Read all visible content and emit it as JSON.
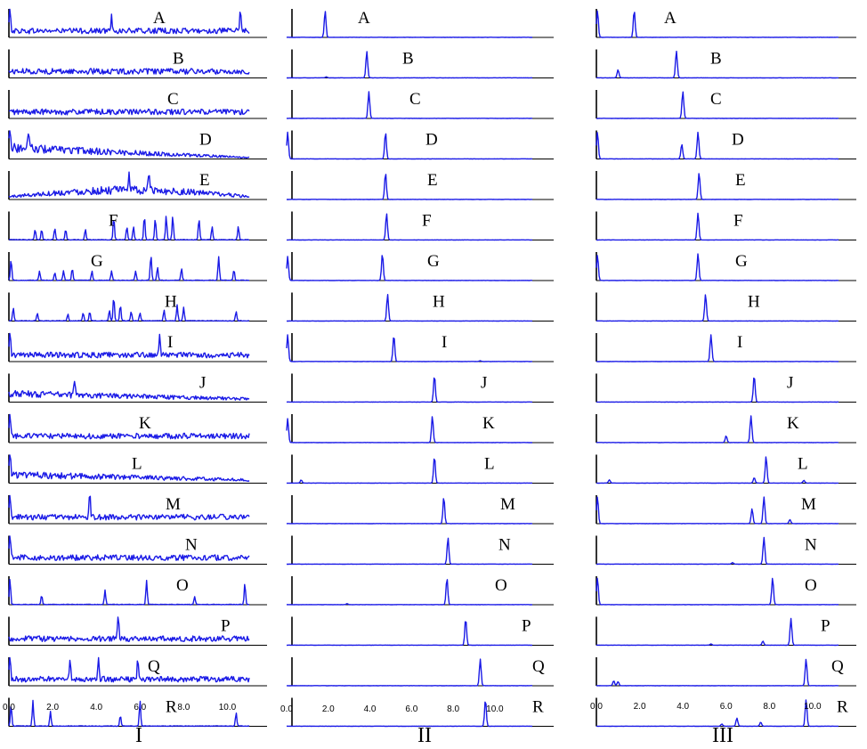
{
  "figure": {
    "panel_titles": [
      "I",
      "II",
      "III"
    ],
    "trace_letters": [
      "A",
      "B",
      "C",
      "D",
      "E",
      "F",
      "G",
      "H",
      "I",
      "J",
      "K",
      "L",
      "M",
      "N",
      "O",
      "P",
      "Q",
      "R"
    ],
    "line_color": "#1a1ae6"
  },
  "chart_data": [
    {
      "type": "line",
      "panel": "I",
      "xlim": [
        0,
        11
      ],
      "x_ticks": [
        "0.0",
        "2.0",
        "4.0",
        "6.0",
        "8.0",
        "10.0"
      ],
      "series": [
        {
          "name": "A",
          "peaks": [
            [
              0.05,
              1.0
            ],
            [
              4.7,
              0.55
            ],
            [
              10.6,
              0.8
            ]
          ]
        },
        {
          "name": "B",
          "peaks": []
        },
        {
          "name": "C",
          "peaks": []
        },
        {
          "name": "D",
          "peaks": [
            [
              0.05,
              1.0
            ],
            [
              0.9,
              0.75
            ]
          ]
        },
        {
          "name": "E",
          "peaks": [
            [
              5.5,
              0.75
            ],
            [
              6.4,
              0.7
            ]
          ]
        },
        {
          "name": "F",
          "peaks": [
            [
              1.2,
              0.4
            ],
            [
              1.5,
              0.4
            ],
            [
              2.1,
              0.45
            ],
            [
              2.6,
              0.4
            ],
            [
              3.5,
              0.4
            ],
            [
              4.8,
              0.85
            ],
            [
              5.4,
              0.5
            ],
            [
              5.7,
              0.5
            ],
            [
              6.2,
              0.9
            ],
            [
              6.7,
              0.8
            ],
            [
              7.2,
              0.9
            ],
            [
              7.5,
              0.9
            ],
            [
              8.7,
              0.8
            ],
            [
              9.3,
              0.5
            ],
            [
              10.5,
              0.5
            ]
          ]
        },
        {
          "name": "G",
          "peaks": [
            [
              0.1,
              0.8
            ],
            [
              1.4,
              0.35
            ],
            [
              2.1,
              0.3
            ],
            [
              2.5,
              0.35
            ],
            [
              2.9,
              0.45
            ],
            [
              3.8,
              0.35
            ],
            [
              4.7,
              0.35
            ],
            [
              5.8,
              0.35
            ],
            [
              6.5,
              0.95
            ],
            [
              6.8,
              0.5
            ],
            [
              7.9,
              0.45
            ],
            [
              9.6,
              0.9
            ],
            [
              10.3,
              0.4
            ]
          ]
        },
        {
          "name": "H",
          "peaks": [
            [
              0.2,
              0.5
            ],
            [
              1.3,
              0.3
            ],
            [
              2.7,
              0.25
            ],
            [
              3.4,
              0.3
            ],
            [
              3.7,
              0.35
            ],
            [
              4.6,
              0.4
            ],
            [
              4.8,
              0.9
            ],
            [
              5.1,
              0.6
            ],
            [
              5.6,
              0.35
            ],
            [
              6.0,
              0.3
            ],
            [
              7.1,
              0.4
            ],
            [
              7.7,
              0.6
            ],
            [
              8.0,
              0.5
            ],
            [
              10.4,
              0.35
            ]
          ]
        },
        {
          "name": "I",
          "peaks": [
            [
              0.05,
              0.9
            ],
            [
              6.9,
              0.8
            ]
          ]
        },
        {
          "name": "J",
          "peaks": [
            [
              3.0,
              0.6
            ]
          ]
        },
        {
          "name": "K",
          "peaks": [
            [
              0.05,
              0.85
            ]
          ]
        },
        {
          "name": "L",
          "peaks": [
            [
              0.05,
              0.9
            ]
          ]
        },
        {
          "name": "M",
          "peaks": [
            [
              0.05,
              1.0
            ],
            [
              3.7,
              0.9
            ]
          ]
        },
        {
          "name": "N",
          "peaks": [
            [
              0.05,
              0.95
            ]
          ]
        },
        {
          "name": "O",
          "peaks": [
            [
              0.05,
              0.95
            ],
            [
              1.5,
              0.35
            ],
            [
              4.4,
              0.55
            ],
            [
              6.3,
              0.9
            ],
            [
              8.5,
              0.3
            ],
            [
              10.8,
              0.8
            ]
          ]
        },
        {
          "name": "P",
          "peaks": [
            [
              5.0,
              0.9
            ]
          ]
        },
        {
          "name": "Q",
          "peaks": [
            [
              0.05,
              0.95
            ],
            [
              2.8,
              0.8
            ],
            [
              4.1,
              0.85
            ],
            [
              5.9,
              0.8
            ]
          ]
        },
        {
          "name": "R",
          "peaks": [
            [
              0.1,
              0.8
            ],
            [
              1.1,
              0.95
            ],
            [
              1.9,
              0.55
            ],
            [
              5.1,
              0.4
            ],
            [
              6.0,
              0.95
            ],
            [
              10.4,
              0.5
            ]
          ]
        }
      ]
    },
    {
      "type": "line",
      "panel": "II",
      "xlim": [
        0,
        11.8
      ],
      "x_ticks": [
        "0.0",
        "2.0",
        "4.0",
        "6.0",
        "8.0",
        "10.0"
      ],
      "series": [
        {
          "name": "A",
          "peaks": [
            [
              1.85,
              1.0
            ]
          ]
        },
        {
          "name": "B",
          "peaks": [
            [
              3.85,
              1.0
            ],
            [
              1.9,
              0.04
            ]
          ]
        },
        {
          "name": "C",
          "peaks": [
            [
              3.95,
              1.0
            ]
          ]
        },
        {
          "name": "D",
          "peaks": [
            [
              4.75,
              1.0
            ],
            [
              0.05,
              1.0
            ]
          ]
        },
        {
          "name": "E",
          "peaks": [
            [
              4.75,
              1.0
            ]
          ]
        },
        {
          "name": "F",
          "peaks": [
            [
              4.8,
              1.0
            ]
          ]
        },
        {
          "name": "G",
          "peaks": [
            [
              4.6,
              1.0
            ],
            [
              0.05,
              0.9
            ]
          ]
        },
        {
          "name": "H",
          "peaks": [
            [
              4.85,
              1.0
            ]
          ]
        },
        {
          "name": "I",
          "peaks": [
            [
              5.15,
              1.0
            ],
            [
              0.05,
              1.0
            ],
            [
              9.3,
              0.03
            ]
          ]
        },
        {
          "name": "J",
          "peaks": [
            [
              7.1,
              1.0
            ]
          ]
        },
        {
          "name": "K",
          "peaks": [
            [
              7.0,
              1.0
            ],
            [
              0.05,
              0.9
            ]
          ]
        },
        {
          "name": "L",
          "peaks": [
            [
              7.1,
              1.0
            ],
            [
              0.7,
              0.12
            ]
          ]
        },
        {
          "name": "M",
          "peaks": [
            [
              7.55,
              1.0
            ]
          ]
        },
        {
          "name": "N",
          "peaks": [
            [
              7.75,
              1.0
            ]
          ]
        },
        {
          "name": "O",
          "peaks": [
            [
              7.7,
              1.0
            ],
            [
              2.9,
              0.04
            ]
          ]
        },
        {
          "name": "P",
          "peaks": [
            [
              8.6,
              1.0
            ]
          ]
        },
        {
          "name": "Q",
          "peaks": [
            [
              9.3,
              1.0
            ]
          ]
        },
        {
          "name": "R",
          "peaks": [
            [
              9.55,
              1.0
            ]
          ]
        }
      ]
    },
    {
      "type": "line",
      "panel": "III",
      "xlim": [
        0,
        11.2
      ],
      "x_ticks": [
        "0.0",
        "2.0",
        "4.0",
        "6.0",
        "8.0",
        "10.0"
      ],
      "series": [
        {
          "name": "A",
          "peaks": [
            [
              1.75,
              1.0
            ],
            [
              0.05,
              1.0
            ]
          ]
        },
        {
          "name": "B",
          "peaks": [
            [
              3.7,
              1.0
            ],
            [
              1.0,
              0.3
            ]
          ]
        },
        {
          "name": "C",
          "peaks": [
            [
              4.0,
              1.0
            ]
          ]
        },
        {
          "name": "D",
          "peaks": [
            [
              4.7,
              1.0
            ],
            [
              3.95,
              0.55
            ],
            [
              0.05,
              1.0
            ]
          ]
        },
        {
          "name": "E",
          "peaks": [
            [
              4.75,
              1.0
            ]
          ]
        },
        {
          "name": "F",
          "peaks": [
            [
              4.7,
              1.0
            ]
          ]
        },
        {
          "name": "G",
          "peaks": [
            [
              4.7,
              1.0
            ],
            [
              0.05,
              0.95
            ]
          ]
        },
        {
          "name": "H",
          "peaks": [
            [
              5.05,
              1.0
            ]
          ]
        },
        {
          "name": "I",
          "peaks": [
            [
              5.3,
              1.0
            ]
          ]
        },
        {
          "name": "J",
          "peaks": [
            [
              7.3,
              1.0
            ]
          ]
        },
        {
          "name": "K",
          "peaks": [
            [
              7.15,
              1.0
            ],
            [
              6.0,
              0.25
            ]
          ]
        },
        {
          "name": "L",
          "peaks": [
            [
              7.85,
              1.0
            ],
            [
              0.6,
              0.12
            ],
            [
              7.3,
              0.2
            ],
            [
              9.6,
              0.1
            ]
          ]
        },
        {
          "name": "M",
          "peaks": [
            [
              7.75,
              1.0
            ],
            [
              7.2,
              0.55
            ],
            [
              8.95,
              0.15
            ],
            [
              0.05,
              1.0
            ]
          ]
        },
        {
          "name": "N",
          "peaks": [
            [
              7.75,
              1.0
            ],
            [
              6.3,
              0.06
            ]
          ]
        },
        {
          "name": "O",
          "peaks": [
            [
              8.15,
              1.0
            ],
            [
              0.05,
              1.0
            ]
          ]
        },
        {
          "name": "P",
          "peaks": [
            [
              9.0,
              1.0
            ],
            [
              7.7,
              0.15
            ],
            [
              5.3,
              0.05
            ]
          ]
        },
        {
          "name": "Q",
          "peaks": [
            [
              9.7,
              1.0
            ],
            [
              0.8,
              0.18
            ],
            [
              1.0,
              0.15
            ]
          ]
        },
        {
          "name": "R",
          "peaks": [
            [
              9.7,
              1.0
            ],
            [
              6.5,
              0.3
            ],
            [
              7.6,
              0.15
            ],
            [
              5.8,
              0.08
            ]
          ]
        }
      ]
    }
  ]
}
